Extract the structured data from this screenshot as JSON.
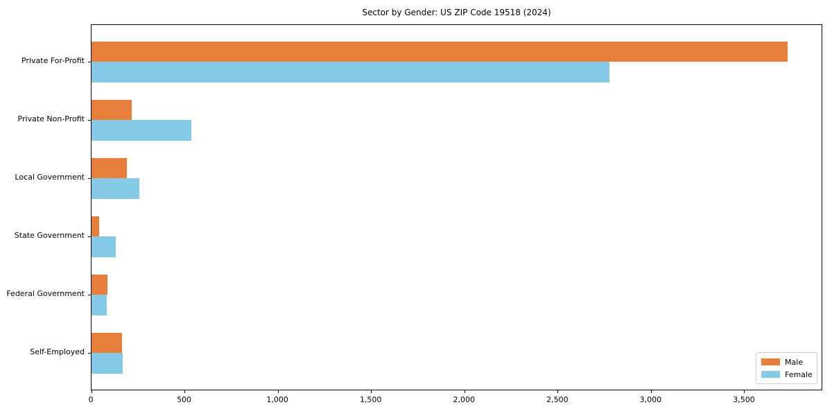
{
  "title": "Sector by Gender: US ZIP Code 19518 (2024)",
  "colors": {
    "male": "#e87e3c",
    "female": "#85cbe8",
    "spine": "#000000",
    "legend_border": "#cccccc",
    "background": "#ffffff"
  },
  "legend": {
    "position": "lower right",
    "entries": [
      {
        "label": "Male",
        "color": "#e87e3c"
      },
      {
        "label": "Female",
        "color": "#85cbe8"
      }
    ]
  },
  "chart_data": {
    "type": "bar",
    "orientation": "horizontal",
    "title": "Sector by Gender: US ZIP Code 19518 (2024)",
    "xlabel": "",
    "ylabel": "",
    "categories": [
      "Private For-Profit",
      "Private Non-Profit",
      "Local Government",
      "State Government",
      "Federal Government",
      "Self-Employed"
    ],
    "series": [
      {
        "name": "Male",
        "color": "#e87e3c",
        "values": [
          3730,
          215,
          190,
          40,
          85,
          163
        ]
      },
      {
        "name": "Female",
        "color": "#85cbe8",
        "values": [
          2775,
          535,
          255,
          130,
          80,
          167
        ]
      }
    ],
    "xlim": [
      0,
      3920
    ],
    "xticks": [
      0,
      500,
      1000,
      1500,
      2000,
      2500,
      3000,
      3500
    ],
    "xtick_labels": [
      "0",
      "500",
      "1,000",
      "1,500",
      "2,000",
      "2,500",
      "3,000",
      "3,500"
    ],
    "grid": false,
    "legend_position": "lower right"
  }
}
